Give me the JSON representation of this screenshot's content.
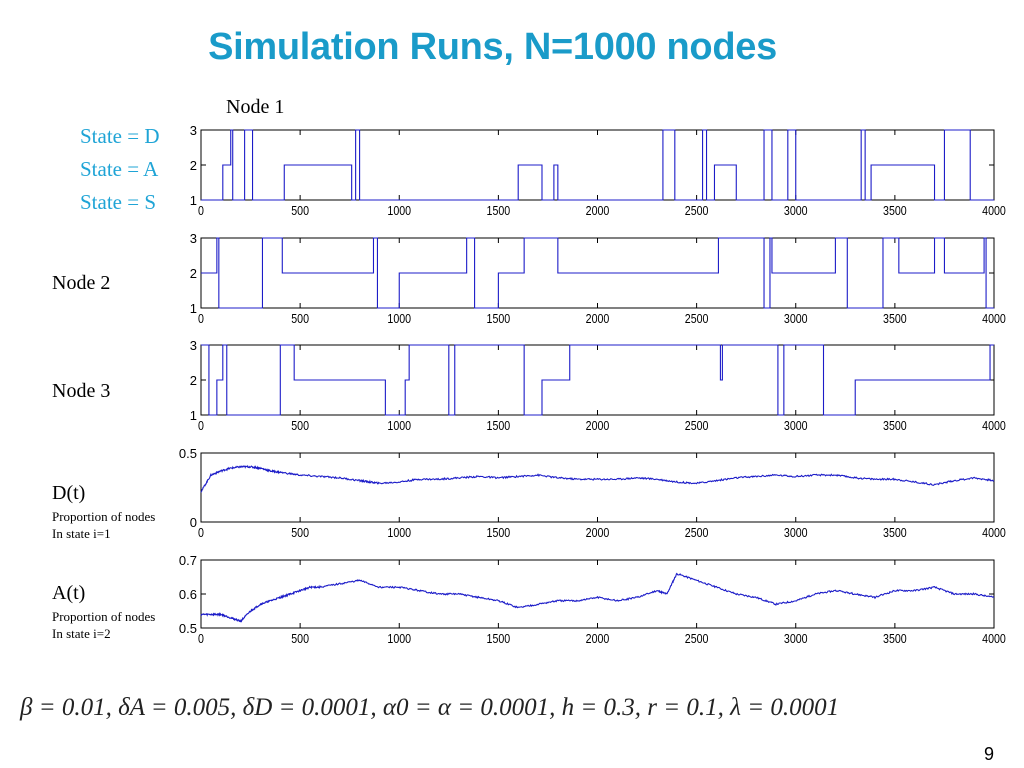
{
  "slide": {
    "title": "Simulation Runs, N=1000 nodes",
    "page_number": "9",
    "formula": "β = 0.01, δA = 0.005, δD = 0.0001, α0 = α = 0.0001, h = 0.3, r = 0.1, λ = 0.0001",
    "node1_label": "Node 1",
    "state_legend": [
      "State = D",
      "State = A",
      "State = S"
    ],
    "node2_label": "Node 2",
    "node3_label": "Node 3",
    "d_label": "D(t)",
    "d_desc1": "Proportion of nodes",
    "d_desc2": "In state i=1",
    "a_label": "A(t)",
    "a_desc1": "Proportion of nodes",
    "a_desc2": "In state i=2",
    "colors": {
      "title": "#1a9bc9",
      "legend": "#1fa4d6",
      "trace": "#1c1cc8"
    }
  },
  "chart_data": [
    {
      "type": "line",
      "step": true,
      "xlim": [
        0,
        4000
      ],
      "ylim": [
        1,
        3
      ],
      "xticks": [
        "0",
        "500",
        "1000",
        "1500",
        "2000",
        "2500",
        "3000",
        "3500",
        "4000"
      ],
      "yticks": [
        "1",
        "2",
        "3"
      ],
      "x": [
        0,
        110,
        150,
        160,
        220,
        260,
        420,
        760,
        780,
        800,
        1600,
        1720,
        1780,
        1800,
        2330,
        2390,
        2530,
        2550,
        2590,
        2700,
        2840,
        2880,
        2960,
        3000,
        3330,
        3350,
        3380,
        3700,
        3750,
        3880,
        4000
      ],
      "y": [
        1,
        2,
        3,
        1,
        3,
        1,
        2,
        1,
        3,
        1,
        2,
        1,
        2,
        1,
        3,
        1,
        3,
        1,
        2,
        1,
        3,
        1,
        3,
        1,
        3,
        1,
        2,
        1,
        3,
        1,
        1
      ]
    },
    {
      "type": "line",
      "step": true,
      "xlim": [
        0,
        4000
      ],
      "ylim": [
        1,
        3
      ],
      "xticks": [
        "0",
        "500",
        "1000",
        "1500",
        "2000",
        "2500",
        "3000",
        "3500",
        "4000"
      ],
      "yticks": [
        "1",
        "2",
        "3"
      ],
      "x": [
        0,
        80,
        90,
        310,
        410,
        870,
        890,
        1000,
        1340,
        1380,
        1500,
        1630,
        1800,
        2610,
        2840,
        2870,
        2880,
        3200,
        3260,
        3440,
        3520,
        3700,
        3750,
        3950,
        3960,
        4000
      ],
      "y": [
        2,
        3,
        1,
        3,
        2,
        3,
        1,
        2,
        3,
        1,
        2,
        3,
        2,
        3,
        1,
        3,
        2,
        3,
        1,
        3,
        2,
        3,
        2,
        3,
        1,
        1
      ]
    },
    {
      "type": "line",
      "step": true,
      "xlim": [
        0,
        4000
      ],
      "ylim": [
        1,
        3
      ],
      "xticks": [
        "0",
        "500",
        "1000",
        "1500",
        "2000",
        "2500",
        "3000",
        "3500",
        "4000"
      ],
      "yticks": [
        "1",
        "2",
        "3"
      ],
      "x": [
        0,
        40,
        80,
        110,
        130,
        400,
        470,
        930,
        1030,
        1050,
        1250,
        1280,
        1630,
        1720,
        1860,
        2620,
        2630,
        2910,
        2940,
        3140,
        3300,
        3980,
        4000
      ],
      "y": [
        3,
        1,
        2,
        3,
        1,
        3,
        2,
        1,
        2,
        3,
        1,
        3,
        1,
        2,
        3,
        2,
        3,
        1,
        3,
        1,
        2,
        3,
        3
      ]
    },
    {
      "type": "line",
      "xlim": [
        0,
        4000
      ],
      "ylim": [
        0,
        0.5
      ],
      "xticks": [
        "0",
        "500",
        "1000",
        "1500",
        "2000",
        "2500",
        "3000",
        "3500",
        "4000"
      ],
      "yticks": [
        "0",
        "0.5"
      ],
      "x": [
        0,
        50,
        100,
        150,
        200,
        250,
        300,
        350,
        400,
        500,
        600,
        700,
        800,
        850,
        900,
        1000,
        1100,
        1200,
        1300,
        1400,
        1500,
        1600,
        1700,
        1800,
        1900,
        2000,
        2100,
        2200,
        2300,
        2400,
        2500,
        2600,
        2700,
        2800,
        2900,
        3000,
        3100,
        3200,
        3300,
        3400,
        3500,
        3600,
        3700,
        3800,
        3900,
        4000
      ],
      "y": [
        0.22,
        0.34,
        0.37,
        0.39,
        0.4,
        0.4,
        0.39,
        0.37,
        0.36,
        0.34,
        0.33,
        0.32,
        0.3,
        0.29,
        0.28,
        0.29,
        0.31,
        0.31,
        0.32,
        0.33,
        0.32,
        0.33,
        0.34,
        0.32,
        0.31,
        0.31,
        0.31,
        0.32,
        0.31,
        0.29,
        0.28,
        0.3,
        0.32,
        0.33,
        0.34,
        0.33,
        0.34,
        0.34,
        0.32,
        0.31,
        0.31,
        0.29,
        0.27,
        0.3,
        0.32,
        0.3
      ]
    },
    {
      "type": "line",
      "xlim": [
        0,
        4000
      ],
      "ylim": [
        0.5,
        0.7
      ],
      "xticks": [
        "0",
        "500",
        "1000",
        "1500",
        "2000",
        "2500",
        "3000",
        "3500",
        "4000"
      ],
      "yticks": [
        "0.5",
        "0.6",
        "0.7"
      ],
      "x": [
        0,
        50,
        100,
        150,
        200,
        250,
        300,
        350,
        400,
        450,
        500,
        550,
        600,
        700,
        800,
        900,
        1000,
        1100,
        1200,
        1300,
        1400,
        1500,
        1600,
        1700,
        1800,
        1900,
        2000,
        2100,
        2200,
        2300,
        2350,
        2400,
        2500,
        2600,
        2700,
        2800,
        2900,
        3000,
        3100,
        3200,
        3300,
        3400,
        3500,
        3600,
        3700,
        3800,
        3900,
        4000
      ],
      "y": [
        0.54,
        0.54,
        0.54,
        0.53,
        0.52,
        0.55,
        0.57,
        0.58,
        0.59,
        0.6,
        0.61,
        0.62,
        0.62,
        0.63,
        0.64,
        0.62,
        0.62,
        0.61,
        0.6,
        0.6,
        0.59,
        0.58,
        0.56,
        0.57,
        0.58,
        0.58,
        0.59,
        0.58,
        0.59,
        0.61,
        0.6,
        0.66,
        0.64,
        0.62,
        0.6,
        0.59,
        0.57,
        0.58,
        0.6,
        0.61,
        0.6,
        0.59,
        0.61,
        0.61,
        0.62,
        0.6,
        0.6,
        0.59
      ]
    }
  ]
}
